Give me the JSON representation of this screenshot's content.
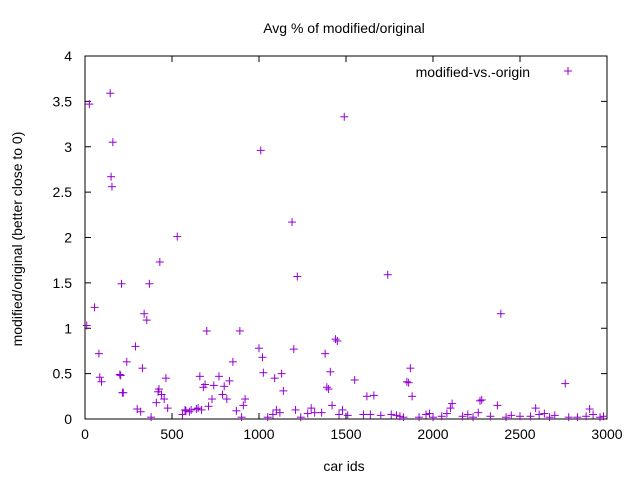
{
  "chart_data": {
    "type": "scatter",
    "title": "Avg % of modified/original",
    "xlabel": "car ids",
    "ylabel": "modified/original (better close to 0)",
    "xlim": [
      0,
      3000
    ],
    "ylim": [
      0,
      4
    ],
    "x_ticks": [
      0,
      500,
      1000,
      1500,
      2000,
      2500,
      3000
    ],
    "y_ticks": [
      0,
      0.5,
      1,
      1.5,
      2,
      2.5,
      3,
      3.5,
      4
    ],
    "grid": false,
    "legend_position": "top-right",
    "marker": "plus",
    "series": [
      {
        "name": "modified-vs.-origin",
        "color": "#9400d3",
        "points": [
          [
            10,
            1.03
          ],
          [
            25,
            3.47
          ],
          [
            55,
            1.23
          ],
          [
            80,
            0.72
          ],
          [
            85,
            0.46
          ],
          [
            95,
            0.41
          ],
          [
            145,
            3.59
          ],
          [
            150,
            2.67
          ],
          [
            155,
            2.56
          ],
          [
            160,
            3.05
          ],
          [
            200,
            0.49
          ],
          [
            205,
            0.48
          ],
          [
            210,
            1.49
          ],
          [
            215,
            0.29
          ],
          [
            220,
            0.29
          ],
          [
            240,
            0.63
          ],
          [
            290,
            0.8
          ],
          [
            300,
            0.11
          ],
          [
            320,
            0.08
          ],
          [
            330,
            0.56
          ],
          [
            340,
            1.16
          ],
          [
            355,
            1.09
          ],
          [
            370,
            1.49
          ],
          [
            380,
            0.02
          ],
          [
            410,
            0.18
          ],
          [
            420,
            0.3
          ],
          [
            425,
            0.33
          ],
          [
            430,
            1.73
          ],
          [
            440,
            0.27
          ],
          [
            455,
            0.22
          ],
          [
            465,
            0.45
          ],
          [
            475,
            0.12
          ],
          [
            530,
            2.01
          ],
          [
            560,
            0.05
          ],
          [
            575,
            0.1
          ],
          [
            580,
            0.09
          ],
          [
            600,
            0.08
          ],
          [
            610,
            0.1
          ],
          [
            640,
            0.11
          ],
          [
            650,
            0.12
          ],
          [
            660,
            0.47
          ],
          [
            670,
            0.1
          ],
          [
            680,
            0.35
          ],
          [
            690,
            0.38
          ],
          [
            700,
            0.97
          ],
          [
            710,
            0.14
          ],
          [
            730,
            0.22
          ],
          [
            740,
            0.37
          ],
          [
            770,
            0.47
          ],
          [
            790,
            0.27
          ],
          [
            800,
            0.36
          ],
          [
            815,
            0.22
          ],
          [
            830,
            0.42
          ],
          [
            850,
            0.63
          ],
          [
            870,
            0.09
          ],
          [
            890,
            0.97
          ],
          [
            900,
            0.02
          ],
          [
            910,
            0.15
          ],
          [
            920,
            0.22
          ],
          [
            1000,
            0.78
          ],
          [
            1010,
            2.96
          ],
          [
            1020,
            0.68
          ],
          [
            1025,
            0.51
          ],
          [
            1050,
            0.02
          ],
          [
            1080,
            0.05
          ],
          [
            1090,
            0.45
          ],
          [
            1100,
            0.1
          ],
          [
            1120,
            0.07
          ],
          [
            1130,
            0.5
          ],
          [
            1140,
            0.31
          ],
          [
            1190,
            2.17
          ],
          [
            1200,
            0.77
          ],
          [
            1210,
            0.1
          ],
          [
            1220,
            1.57
          ],
          [
            1240,
            0.02
          ],
          [
            1280,
            0.06
          ],
          [
            1300,
            0.12
          ],
          [
            1320,
            0.07
          ],
          [
            1360,
            0.07
          ],
          [
            1380,
            0.72
          ],
          [
            1390,
            0.35
          ],
          [
            1400,
            0.33
          ],
          [
            1410,
            0.52
          ],
          [
            1420,
            0.15
          ],
          [
            1440,
            0.88
          ],
          [
            1450,
            0.86
          ],
          [
            1460,
            0.05
          ],
          [
            1480,
            0.1
          ],
          [
            1490,
            3.33
          ],
          [
            1510,
            0.04
          ],
          [
            1550,
            0.43
          ],
          [
            1600,
            0.05
          ],
          [
            1620,
            0.25
          ],
          [
            1640,
            0.05
          ],
          [
            1660,
            0.26
          ],
          [
            1700,
            0.04
          ],
          [
            1740,
            1.59
          ],
          [
            1760,
            0.05
          ],
          [
            1790,
            0.04
          ],
          [
            1810,
            0.03
          ],
          [
            1830,
            0.02
          ],
          [
            1850,
            0.41
          ],
          [
            1860,
            0.4
          ],
          [
            1870,
            0.56
          ],
          [
            1880,
            0.25
          ],
          [
            1920,
            0.02
          ],
          [
            1960,
            0.05
          ],
          [
            1980,
            0.06
          ],
          [
            2000,
            0.02
          ],
          [
            2050,
            0.03
          ],
          [
            2080,
            0.06
          ],
          [
            2100,
            0.12
          ],
          [
            2110,
            0.17
          ],
          [
            2170,
            0.03
          ],
          [
            2200,
            0.05
          ],
          [
            2230,
            0.02
          ],
          [
            2260,
            0.07
          ],
          [
            2270,
            0.2
          ],
          [
            2280,
            0.21
          ],
          [
            2330,
            0.03
          ],
          [
            2370,
            0.15
          ],
          [
            2390,
            1.16
          ],
          [
            2420,
            0.02
          ],
          [
            2450,
            0.04
          ],
          [
            2500,
            0.03
          ],
          [
            2560,
            0.03
          ],
          [
            2590,
            0.12
          ],
          [
            2610,
            0.05
          ],
          [
            2640,
            0.06
          ],
          [
            2670,
            0.02
          ],
          [
            2700,
            0.04
          ],
          [
            2760,
            0.39
          ],
          [
            2780,
            0.02
          ],
          [
            2830,
            0.02
          ],
          [
            2880,
            0.03
          ],
          [
            2900,
            0.11
          ],
          [
            2920,
            0.05
          ],
          [
            2960,
            0.02
          ],
          [
            2980,
            0.03
          ]
        ]
      }
    ]
  }
}
